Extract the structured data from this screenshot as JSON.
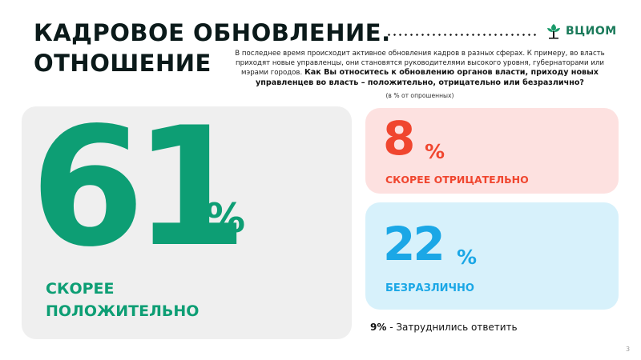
{
  "title": {
    "line1": "КАДРОВОЕ ОБНОВЛЕНИЕ.",
    "line2": "ОТНОШЕНИЕ"
  },
  "logo": {
    "text": "ВЦИОМ",
    "color": "#1a7a5a"
  },
  "question": {
    "intro": "В последнее время происходит активное обновления кадров в разных сферах. К примеру, во власть приходят новые управленцы, они становятся руководителями высокого уровня, губернаторами или мэрами городов.",
    "strong": "Как Вы относитесь к обновлению органов власти, приходу новых управленцев во власть – положительно, отрицательно или безразлично?",
    "note": "(в % от опрошенных)"
  },
  "results": {
    "positive": {
      "value": "61",
      "unit": "%",
      "label_line1": "СКОРЕЕ",
      "label_line2": "ПОЛОЖИТЕЛЬНО",
      "color": "#0d9e74"
    },
    "negative": {
      "value": "8",
      "unit": "%",
      "label": "СКОРЕЕ ОТРИЦАТЕЛЬНО",
      "color": "#f0462f"
    },
    "indifferent": {
      "value": "22",
      "unit": "%",
      "label": "БЕЗРАЗЛИЧНО",
      "color": "#1ba7e6"
    },
    "hard_to_say": {
      "value": "9%",
      "label": " - Затруднились ответить"
    }
  },
  "page_number": "3"
}
